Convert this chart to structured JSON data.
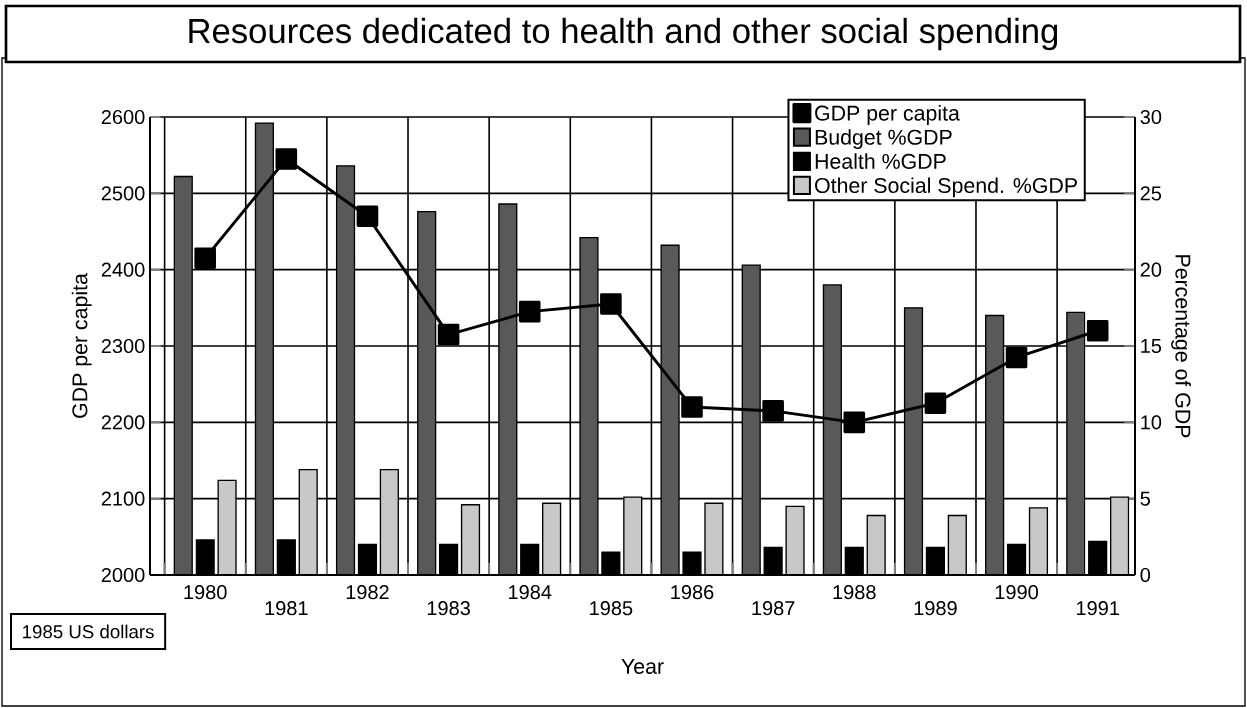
{
  "chart_data": {
    "type": "bar",
    "title": "Resources dedicated to health and other social spending",
    "xlabel": "Year",
    "ylabel": "GDP per capita",
    "y2label": "Percentage of GDP",
    "annotations": [
      "1985 US dollars"
    ],
    "categories": [
      "1980",
      "1981",
      "1982",
      "1983",
      "1984",
      "1985",
      "1986",
      "1987",
      "1988",
      "1989",
      "1990",
      "1991"
    ],
    "series": [
      {
        "name": "GDP per capita",
        "type": "line",
        "color": "#000000",
        "values": [
          2415,
          2545,
          2470,
          2315,
          2345,
          2355,
          2220,
          2215,
          2200,
          2225,
          2285,
          2320
        ]
      },
      {
        "name": "Budget %GDP",
        "type": "bar",
        "axis": "y2",
        "color": "#595959",
        "values": [
          26.1,
          29.6,
          26.8,
          23.8,
          24.3,
          22.1,
          21.6,
          20.3,
          19.0,
          17.5,
          17.0,
          17.2
        ]
      },
      {
        "name": "Health %GDP",
        "type": "bar",
        "axis": "y2",
        "color": "#000000",
        "values": [
          2.3,
          2.3,
          2.0,
          2.0,
          2.0,
          1.5,
          1.5,
          1.8,
          1.8,
          1.8,
          2.0,
          2.2
        ]
      },
      {
        "name": "Other Social Spend. %GDP",
        "type": "bar",
        "axis": "y2",
        "color": "#c8c8c8",
        "values": [
          6.2,
          6.9,
          6.9,
          4.6,
          4.7,
          5.1,
          4.7,
          4.5,
          3.9,
          3.9,
          4.4,
          5.1
        ]
      }
    ],
    "ylim": [
      2000,
      2600
    ],
    "yticks": [
      2000,
      2100,
      2200,
      2300,
      2400,
      2500,
      2600
    ],
    "y2lim": [
      0,
      30
    ],
    "y2ticks": [
      0,
      5,
      10,
      15,
      20,
      25,
      30
    ],
    "grid": true,
    "legend": "top right",
    "marker": "square",
    "line_style": "solid"
  }
}
